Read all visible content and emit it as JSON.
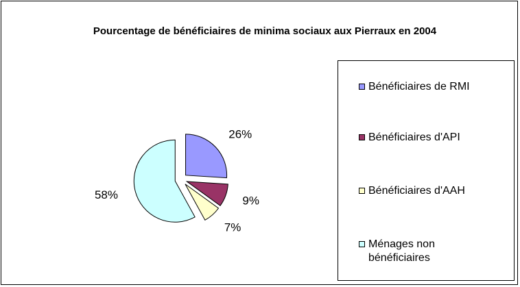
{
  "chart_data": {
    "type": "pie",
    "title": "Pourcentage de bénéficiaires de minima sociaux aux Pierraux en 2004",
    "categories": [
      "Bénéficiaires de RMI",
      "Bénéficiaires d'API",
      "Bénéficiaires d'AAH",
      "Ménages non bénéficiaires"
    ],
    "values": [
      26,
      9,
      7,
      58
    ],
    "value_labels": [
      "26%",
      "9%",
      "7%",
      "58%"
    ],
    "colors": [
      "#9999ff",
      "#993366",
      "#ffffcc",
      "#ccffff"
    ],
    "legend": "right"
  }
}
